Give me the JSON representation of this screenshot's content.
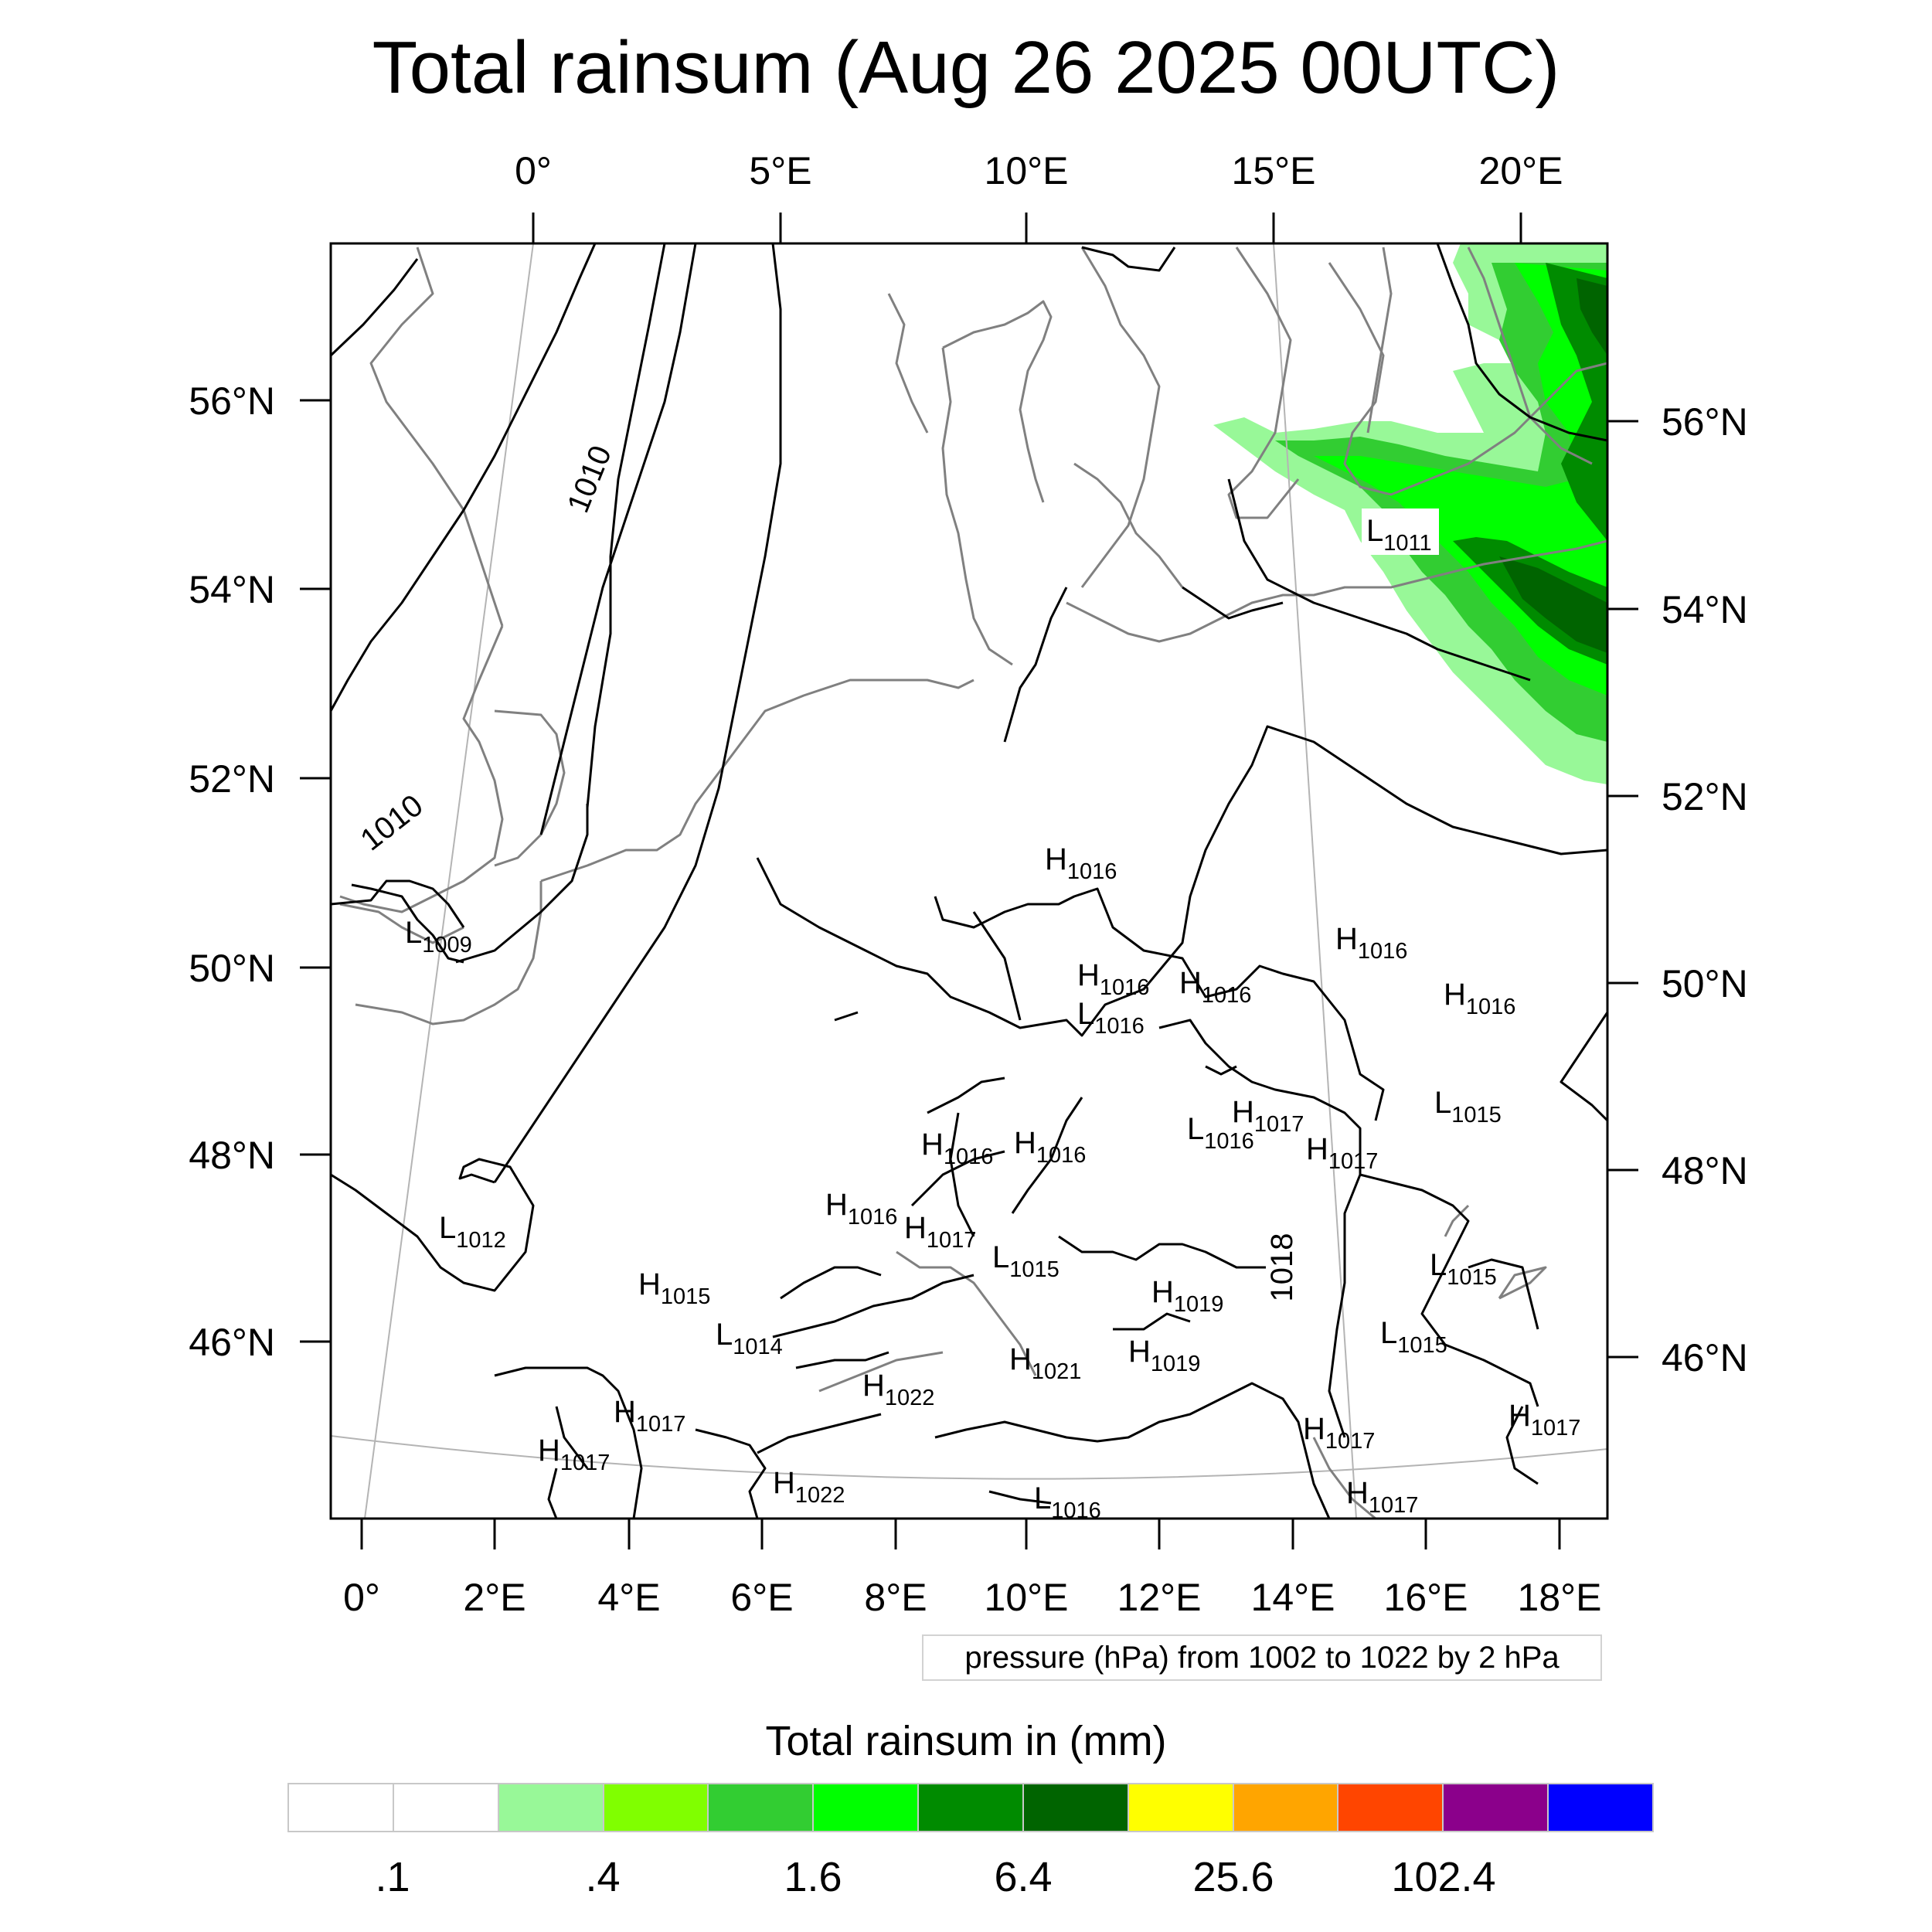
{
  "title": "Total rainsum (Aug 26 2025 00UTC)",
  "top_lon_labels": [
    "0°",
    "5°E",
    "10°E",
    "15°E",
    "20°E"
  ],
  "bottom_lon_labels": [
    "0°",
    "2°E",
    "4°E",
    "6°E",
    "8°E",
    "10°E",
    "12°E",
    "14°E",
    "16°E",
    "18°E"
  ],
  "left_lat_labels": [
    "56°N",
    "54°N",
    "52°N",
    "50°N",
    "48°N",
    "46°N"
  ],
  "right_lat_labels": [
    "56°N",
    "54°N",
    "52°N",
    "50°N",
    "48°N",
    "46°N"
  ],
  "contour_labels": [
    "1010",
    "1010",
    "1018"
  ],
  "pressure_centers": [
    {
      "t": "L",
      "v": "1011"
    },
    {
      "t": "L",
      "v": "1009"
    },
    {
      "t": "H",
      "v": "1016"
    },
    {
      "t": "H",
      "v": "1016"
    },
    {
      "t": "H",
      "v": "1016"
    },
    {
      "t": "L",
      "v": "1016"
    },
    {
      "t": "H",
      "v": "1016"
    },
    {
      "t": "H",
      "v": "1016"
    },
    {
      "t": "L",
      "v": "1015"
    },
    {
      "t": "H",
      "v": "1017"
    },
    {
      "t": "L",
      "v": "1016"
    },
    {
      "t": "H",
      "v": "1017"
    },
    {
      "t": "H",
      "v": "1016"
    },
    {
      "t": "H",
      "v": "1016"
    },
    {
      "t": "L",
      "v": "1012"
    },
    {
      "t": "H",
      "v": "1016"
    },
    {
      "t": "H",
      "v": "1017"
    },
    {
      "t": "L",
      "v": "1015"
    },
    {
      "t": "H",
      "v": "1015"
    },
    {
      "t": "H",
      "v": "1019"
    },
    {
      "t": "L",
      "v": "1015"
    },
    {
      "t": "L",
      "v": "1014"
    },
    {
      "t": "L",
      "v": "1015"
    },
    {
      "t": "H",
      "v": "1021"
    },
    {
      "t": "H",
      "v": "1019"
    },
    {
      "t": "H",
      "v": "1022"
    },
    {
      "t": "H",
      "v": "1017"
    },
    {
      "t": "H",
      "v": "1017"
    },
    {
      "t": "H",
      "v": "1017"
    },
    {
      "t": "H",
      "v": "1017"
    },
    {
      "t": "H",
      "v": "1022"
    },
    {
      "t": "L",
      "v": "1016"
    },
    {
      "t": "H",
      "v": "1017"
    }
  ],
  "info_label": "pressure (hPa) from 1002 to 1022 by 2 hPa",
  "colorbar": {
    "title": "Total rainsum in (mm)",
    "colors": [
      "#ffffff",
      "#ffffff",
      "#98f898",
      "#80ff00",
      "#32cd32",
      "#00ff00",
      "#008b00",
      "#006400",
      "#ffff00",
      "#ffa500",
      "#ff4500",
      "#8b008b",
      "#0000ff"
    ],
    "labels": [
      ".1",
      ".4",
      "1.6",
      "6.4",
      "25.6",
      "102.4"
    ]
  },
  "colors": {
    "coast": "#808080",
    "isobar": "#000000",
    "graticule": "#b4b4b4"
  }
}
